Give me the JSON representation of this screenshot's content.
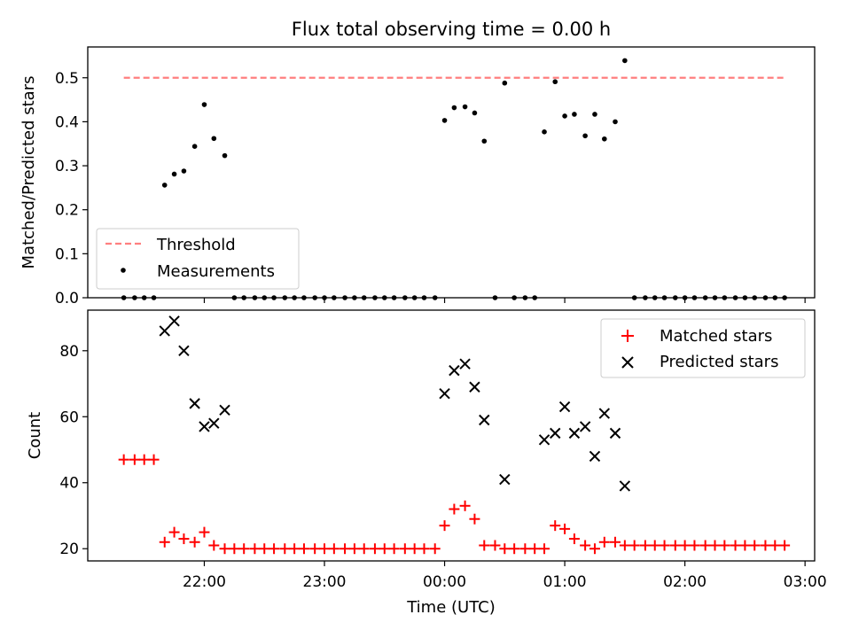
{
  "figure": {
    "title": "Flux total observing time = 0.00 h"
  },
  "colors": {
    "threshold": "#ff7f7f",
    "measurements": "#000000",
    "matched": "#ff0000",
    "predicted": "#000000"
  },
  "x_ticks": [
    "22:00",
    "23:00",
    "00:00",
    "01:00",
    "02:00",
    "03:00"
  ],
  "x_tick_hours": [
    22,
    23,
    24,
    25,
    26,
    27
  ],
  "chart_data": [
    {
      "type": "scatter",
      "ylabel": "Matched/Predicted stars",
      "ylim": [
        0,
        0.57
      ],
      "yticks": [
        0.0,
        0.1,
        0.2,
        0.3,
        0.4,
        0.5
      ],
      "ytick_labels": [
        "0.0",
        "0.1",
        "0.2",
        "0.3",
        "0.4",
        "0.5"
      ],
      "xlim_hours": [
        21.03,
        27.08
      ],
      "x_time_format": "decimal hours UTC (24 = 00:00 next day)",
      "legend_location": "lower-left",
      "series": [
        {
          "name": "Threshold",
          "kind": "dashed-line",
          "x": [
            21.33,
            26.83
          ],
          "y": [
            0.5,
            0.5
          ]
        },
        {
          "name": "Measurements",
          "kind": "dot",
          "x": [
            21.33,
            21.42,
            21.5,
            21.58,
            21.67,
            21.75,
            21.83,
            21.92,
            22.0,
            22.08,
            22.17,
            22.25,
            22.33,
            22.42,
            22.5,
            22.58,
            22.67,
            22.75,
            22.83,
            22.92,
            23.0,
            23.08,
            23.17,
            23.25,
            23.33,
            23.42,
            23.5,
            23.58,
            23.67,
            23.75,
            23.83,
            23.92,
            24.0,
            24.08,
            24.17,
            24.25,
            24.33,
            24.42,
            24.5,
            24.58,
            24.67,
            24.75,
            24.83,
            24.92,
            25.0,
            25.08,
            25.17,
            25.25,
            25.33,
            25.42,
            25.5,
            25.58,
            25.67,
            25.75,
            25.83,
            25.92,
            26.0,
            26.08,
            26.17,
            26.25,
            26.33,
            26.42,
            26.5,
            26.58,
            26.67,
            26.75,
            26.83
          ],
          "y": [
            0,
            0,
            0,
            0,
            0.256,
            0.281,
            0.288,
            0.344,
            0.439,
            0.362,
            0.323,
            0,
            0,
            0,
            0,
            0,
            0,
            0,
            0,
            0,
            0,
            0,
            0,
            0,
            0,
            0,
            0,
            0,
            0,
            0,
            0,
            0,
            0.403,
            0.432,
            0.434,
            0.42,
            0.356,
            0,
            0.488,
            0,
            0,
            0,
            0.377,
            0.491,
            0.413,
            0.417,
            0.368,
            0.417,
            0.361,
            0.4,
            0.539,
            0,
            0,
            0,
            0,
            0,
            0,
            0,
            0,
            0,
            0,
            0,
            0,
            0,
            0,
            0,
            0
          ]
        }
      ]
    },
    {
      "type": "scatter",
      "xlabel": "Time (UTC)",
      "ylabel": "Count",
      "ylim": [
        16.3,
        92.3
      ],
      "yticks": [
        20,
        40,
        60,
        80
      ],
      "ytick_labels": [
        "20",
        "40",
        "60",
        "80"
      ],
      "xlim_hours": [
        21.03,
        27.08
      ],
      "legend_location": "top-right",
      "series": [
        {
          "name": "Matched stars",
          "kind": "plus",
          "x": [
            21.33,
            21.42,
            21.5,
            21.58,
            21.67,
            21.75,
            21.83,
            21.92,
            22.0,
            22.08,
            22.17,
            22.25,
            22.33,
            22.42,
            22.5,
            22.58,
            22.67,
            22.75,
            22.83,
            22.92,
            23.0,
            23.08,
            23.17,
            23.25,
            23.33,
            23.42,
            23.5,
            23.58,
            23.67,
            23.75,
            23.83,
            23.92,
            24.0,
            24.08,
            24.17,
            24.25,
            24.33,
            24.42,
            24.5,
            24.58,
            24.67,
            24.75,
            24.83,
            24.92,
            25.0,
            25.08,
            25.17,
            25.25,
            25.33,
            25.42,
            25.5,
            25.58,
            25.67,
            25.75,
            25.83,
            25.92,
            26.0,
            26.08,
            26.17,
            26.25,
            26.33,
            26.42,
            26.5,
            26.58,
            26.67,
            26.75,
            26.83
          ],
          "y": [
            47,
            47,
            47,
            47,
            22,
            25,
            23,
            22,
            25,
            21,
            20,
            20,
            20,
            20,
            20,
            20,
            20,
            20,
            20,
            20,
            20,
            20,
            20,
            20,
            20,
            20,
            20,
            20,
            20,
            20,
            20,
            20,
            27,
            32,
            33,
            29,
            21,
            21,
            20,
            20,
            20,
            20,
            20,
            27,
            26,
            23,
            21,
            20,
            22,
            22,
            21,
            21,
            21,
            21,
            21,
            21,
            21,
            21,
            21,
            21,
            21,
            21,
            21,
            21,
            21,
            21,
            21
          ]
        },
        {
          "name": "Predicted stars",
          "kind": "x",
          "x": [
            21.67,
            21.75,
            21.83,
            21.92,
            22.0,
            22.08,
            22.17,
            24.0,
            24.08,
            24.17,
            24.25,
            24.33,
            24.5,
            24.83,
            24.92,
            25.0,
            25.08,
            25.17,
            25.25,
            25.33,
            25.42,
            25.5
          ],
          "y": [
            86,
            89,
            80,
            64,
            57,
            58,
            62,
            67,
            74,
            76,
            69,
            59,
            41,
            53,
            55,
            63,
            55,
            57,
            48,
            61,
            55,
            39
          ]
        }
      ]
    }
  ]
}
